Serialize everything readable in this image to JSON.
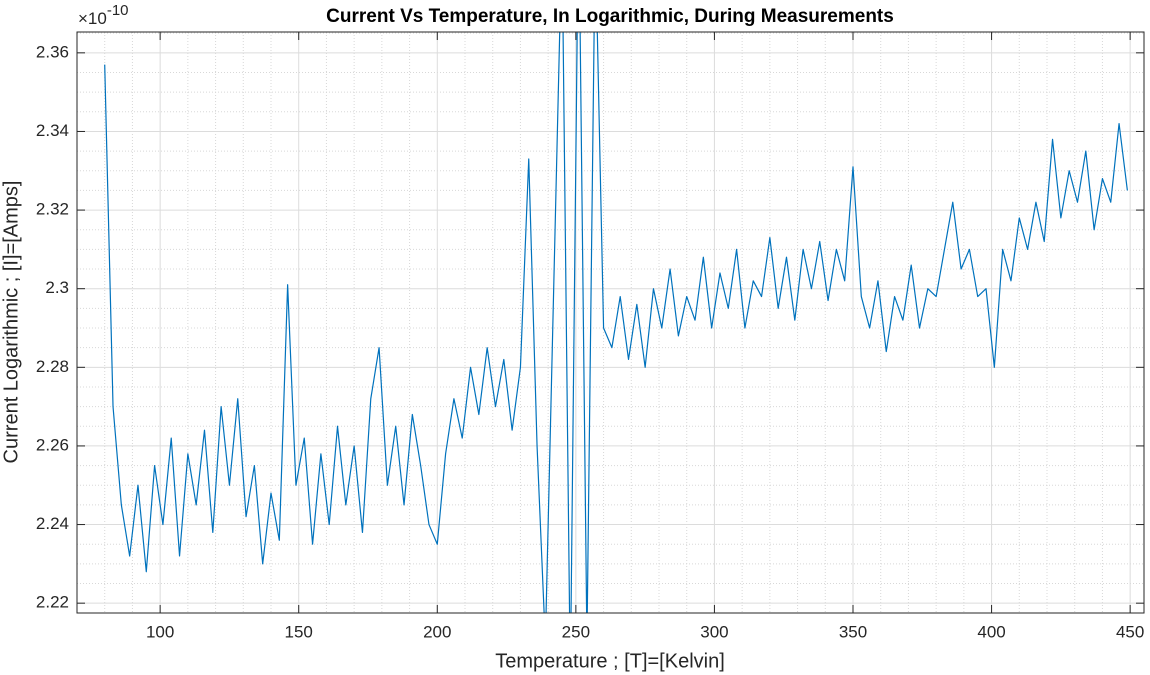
{
  "chart_data": {
    "type": "line",
    "title": "Current Vs Temperature, In Logarithmic, During Measurements",
    "x_label": "Temperature ; [T]=[Kelvin]",
    "y_label": "Current Logarithmic ; [I]=[Amps]",
    "y_multiplier": "×10",
    "y_exponent": "-10",
    "x": [
      80,
      83,
      86,
      89,
      92,
      95,
      98,
      101,
      104,
      107,
      110,
      113,
      116,
      119,
      122,
      125,
      128,
      131,
      134,
      137,
      140,
      143,
      146,
      149,
      152,
      155,
      158,
      161,
      164,
      167,
      170,
      173,
      176,
      179,
      182,
      185,
      188,
      191,
      194,
      197,
      200,
      203,
      206,
      209,
      212,
      215,
      218,
      221,
      224,
      227,
      230,
      233,
      236,
      239,
      242,
      245,
      248,
      251,
      254,
      257,
      260,
      263,
      266,
      269,
      272,
      275,
      278,
      281,
      284,
      287,
      290,
      293,
      296,
      299,
      302,
      305,
      308,
      311,
      314,
      317,
      320,
      323,
      326,
      329,
      332,
      335,
      338,
      341,
      344,
      347,
      350,
      353,
      356,
      359,
      362,
      365,
      368,
      371,
      374,
      377,
      380,
      383,
      386,
      389,
      392,
      395,
      398,
      401,
      404,
      407,
      410,
      413,
      416,
      419,
      422,
      425,
      428,
      431,
      434,
      437,
      440,
      443,
      446,
      449
    ],
    "series": [
      {
        "color": "#0072BD",
        "values": [
          2.357,
          2.27,
          2.245,
          2.232,
          2.25,
          2.228,
          2.255,
          2.24,
          2.262,
          2.232,
          2.258,
          2.245,
          2.264,
          2.238,
          2.27,
          2.25,
          2.272,
          2.242,
          2.255,
          2.23,
          2.248,
          2.236,
          2.301,
          2.25,
          2.262,
          2.235,
          2.258,
          2.24,
          2.265,
          2.245,
          2.26,
          2.238,
          2.272,
          2.285,
          2.25,
          2.265,
          2.245,
          2.268,
          2.255,
          2.24,
          2.235,
          2.258,
          2.272,
          2.262,
          2.28,
          2.268,
          2.285,
          2.27,
          2.282,
          2.264,
          2.28,
          2.333,
          2.26,
          2.21,
          2.3,
          2.39,
          2.2,
          2.4,
          2.21,
          2.39,
          2.29,
          2.285,
          2.298,
          2.282,
          2.296,
          2.28,
          2.3,
          2.29,
          2.305,
          2.288,
          2.298,
          2.292,
          2.308,
          2.29,
          2.304,
          2.295,
          2.31,
          2.29,
          2.302,
          2.298,
          2.313,
          2.295,
          2.308,
          2.292,
          2.31,
          2.3,
          2.312,
          2.297,
          2.31,
          2.302,
          2.331,
          2.298,
          2.29,
          2.302,
          2.284,
          2.298,
          2.292,
          2.306,
          2.29,
          2.3,
          2.298,
          2.31,
          2.322,
          2.305,
          2.31,
          2.298,
          2.3,
          2.28,
          2.31,
          2.302,
          2.318,
          2.31,
          2.322,
          2.312,
          2.338,
          2.318,
          2.33,
          2.322,
          2.335,
          2.315,
          2.328,
          2.322,
          2.342,
          2.325
        ]
      }
    ],
    "xlim": [
      70,
      455
    ],
    "ylim": [
      2.2175,
      2.3653
    ],
    "xticks": [
      100,
      150,
      200,
      250,
      300,
      350,
      400,
      450
    ],
    "yticks": [
      2.22,
      2.24,
      2.26,
      2.28,
      2.3,
      2.32,
      2.34,
      2.36
    ],
    "grid": true,
    "minor_grid": true
  }
}
